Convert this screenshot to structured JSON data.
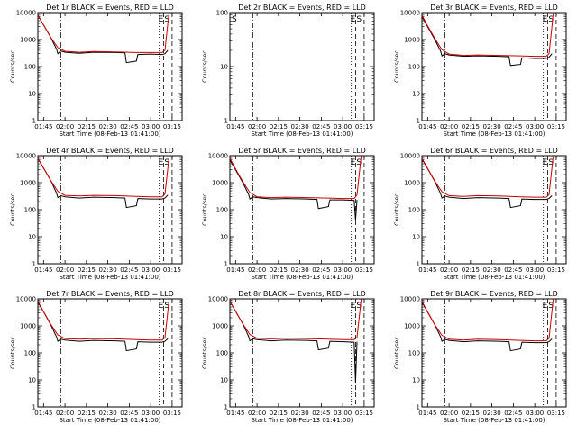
{
  "chart_data": [
    {
      "type": "line",
      "title": "Det 1r BLACK = Events, RED = LLD",
      "xlabel": "Start Time (08-Feb-13 01:41:00)",
      "ylabel": "Counts/sec",
      "yscale": "log",
      "ylim": [
        1,
        10000
      ],
      "xlim": [
        "01:41",
        "03:22"
      ],
      "xticks": [
        "01:45",
        "02:00",
        "02:15",
        "02:30",
        "02:45",
        "03:00",
        "03:15"
      ],
      "yticks": [
        "1",
        "10",
        "100",
        "1000",
        "10000"
      ],
      "annotations": [
        "E",
        "S"
      ],
      "series": [
        {
          "name": "Events",
          "color": "#000000",
          "x": [
            "01:41",
            "01:45",
            "01:50",
            "01:54",
            "01:55",
            "01:57",
            "02:00",
            "02:10",
            "02:20",
            "02:35",
            "02:42",
            "02:43",
            "02:50",
            "02:51",
            "03:00",
            "03:08",
            "03:10",
            "03:12"
          ],
          "y": [
            8000,
            3500,
            1200,
            450,
            300,
            380,
            340,
            310,
            340,
            330,
            320,
            140,
            160,
            280,
            290,
            280,
            300,
            400
          ]
        },
        {
          "name": "LLD",
          "color": "#cc0000",
          "x": [
            "01:41",
            "01:45",
            "01:50",
            "01:55",
            "02:00",
            "02:10",
            "02:20",
            "02:35",
            "02:50",
            "03:00",
            "03:08",
            "03:10",
            "03:12",
            "03:13"
          ],
          "y": [
            8000,
            3500,
            1200,
            500,
            370,
            340,
            360,
            350,
            330,
            330,
            330,
            400,
            4000,
            10000
          ]
        }
      ]
    },
    {
      "type": "line",
      "title": "Det 2r BLACK = Events, RED = LLD",
      "xlabel": "Start Time (08-Feb-13 01:41:00)",
      "ylabel": "Counts/sec",
      "yscale": "log",
      "ylim": [
        1,
        100
      ],
      "xlim": [
        "01:41",
        "03:22"
      ],
      "xticks": [
        "01:45",
        "02:00",
        "02:15",
        "02:30",
        "02:45",
        "03:00",
        "03:15"
      ],
      "yticks": [
        "1",
        "10",
        "100"
      ],
      "annotations": [
        "S",
        "E",
        "S"
      ],
      "series": []
    },
    {
      "type": "line",
      "title": "Det 3r BLACK = Events, RED = LLD",
      "xlabel": "Start Time (08-Feb-13 01:41:00)",
      "ylabel": "Counts/sec",
      "yscale": "log",
      "ylim": [
        1,
        10000
      ],
      "xlim": [
        "01:41",
        "03:22"
      ],
      "xticks": [
        "01:45",
        "02:00",
        "02:15",
        "02:30",
        "02:45",
        "03:00",
        "03:15"
      ],
      "yticks": [
        "1",
        "10",
        "100",
        "1000",
        "10000"
      ],
      "annotations": [
        "E",
        "S"
      ],
      "series": [
        {
          "name": "Events",
          "color": "#000000",
          "x": [
            "01:41",
            "01:45",
            "01:50",
            "01:54",
            "01:55",
            "01:57",
            "02:00",
            "02:10",
            "02:20",
            "02:35",
            "02:42",
            "02:43",
            "02:50",
            "02:51",
            "03:00",
            "03:08",
            "03:10",
            "03:12"
          ],
          "y": [
            7000,
            3000,
            1000,
            380,
            250,
            300,
            270,
            240,
            250,
            240,
            230,
            110,
            120,
            210,
            200,
            200,
            220,
            300
          ]
        },
        {
          "name": "LLD",
          "color": "#cc0000",
          "x": [
            "01:41",
            "01:45",
            "01:50",
            "01:55",
            "02:00",
            "02:10",
            "02:20",
            "02:35",
            "02:50",
            "03:00",
            "03:08",
            "03:10",
            "03:12",
            "03:13"
          ],
          "y": [
            8000,
            3200,
            1100,
            420,
            290,
            260,
            270,
            260,
            250,
            240,
            240,
            300,
            3000,
            10000
          ]
        }
      ]
    },
    {
      "type": "line",
      "title": "Det 4r BLACK = Events, RED = LLD",
      "xlabel": "Start Time (08-Feb-13 01:41:00)",
      "ylabel": "Counts/sec",
      "yscale": "log",
      "ylim": [
        1,
        10000
      ],
      "xlim": [
        "01:41",
        "03:22"
      ],
      "xticks": [
        "01:45",
        "02:00",
        "02:15",
        "02:30",
        "02:45",
        "03:00",
        "03:15"
      ],
      "yticks": [
        "1",
        "10",
        "100",
        "1000",
        "10000"
      ],
      "annotations": [
        "E",
        "S"
      ],
      "series": [
        {
          "name": "Events",
          "color": "#000000",
          "x": [
            "01:41",
            "01:45",
            "01:50",
            "01:54",
            "01:55",
            "01:57",
            "02:00",
            "02:10",
            "02:20",
            "02:35",
            "02:42",
            "02:43",
            "02:50",
            "02:51",
            "03:00",
            "03:08",
            "03:10",
            "03:12"
          ],
          "y": [
            8000,
            3500,
            1200,
            420,
            280,
            330,
            300,
            270,
            290,
            280,
            270,
            120,
            140,
            260,
            250,
            250,
            270,
            350
          ]
        },
        {
          "name": "LLD",
          "color": "#cc0000",
          "x": [
            "01:41",
            "01:45",
            "01:50",
            "01:55",
            "02:00",
            "02:10",
            "02:20",
            "02:35",
            "02:50",
            "03:00",
            "03:08",
            "03:10",
            "03:12",
            "03:13"
          ],
          "y": [
            8000,
            3500,
            1200,
            480,
            340,
            320,
            340,
            330,
            310,
            300,
            300,
            380,
            3500,
            10000
          ]
        }
      ]
    },
    {
      "type": "line",
      "title": "Det 5r BLACK = Events, RED = LLD",
      "xlabel": "Start Time (08-Feb-13 01:41:00)",
      "ylabel": "Counts/sec",
      "yscale": "log",
      "ylim": [
        1,
        10000
      ],
      "xlim": [
        "01:41",
        "03:22"
      ],
      "xticks": [
        "01:45",
        "02:00",
        "02:15",
        "02:30",
        "02:45",
        "03:00",
        "03:15"
      ],
      "yticks": [
        "1",
        "10",
        "100",
        "1000",
        "10000"
      ],
      "annotations": [
        "E",
        "S"
      ],
      "series": [
        {
          "name": "Events",
          "color": "#000000",
          "x": [
            "01:41",
            "01:45",
            "01:50",
            "01:54",
            "01:55",
            "01:57",
            "02:00",
            "02:10",
            "02:20",
            "02:35",
            "02:42",
            "02:43",
            "02:50",
            "02:51",
            "03:00",
            "03:08",
            "03:09",
            "03:10"
          ],
          "y": [
            7000,
            3000,
            1000,
            380,
            250,
            300,
            280,
            250,
            260,
            250,
            240,
            110,
            130,
            230,
            230,
            220,
            40,
            230
          ]
        },
        {
          "name": "LLD",
          "color": "#cc0000",
          "x": [
            "01:41",
            "01:45",
            "01:50",
            "01:55",
            "02:00",
            "02:10",
            "02:20",
            "02:35",
            "02:50",
            "03:00",
            "03:08",
            "03:10",
            "03:12",
            "03:13"
          ],
          "y": [
            8000,
            3200,
            1100,
            430,
            300,
            280,
            290,
            280,
            270,
            260,
            260,
            350,
            3500,
            10000
          ]
        }
      ]
    },
    {
      "type": "line",
      "title": "Det 6r BLACK = Events, RED = LLD",
      "xlabel": "Start Time (08-Feb-13 01:41:00)",
      "ylabel": "Counts/sec",
      "yscale": "log",
      "ylim": [
        1,
        10000
      ],
      "xlim": [
        "01:41",
        "03:22"
      ],
      "xticks": [
        "01:45",
        "02:00",
        "02:15",
        "02:30",
        "02:45",
        "03:00",
        "03:15"
      ],
      "yticks": [
        "1",
        "10",
        "100",
        "1000",
        "10000"
      ],
      "annotations": [
        "E",
        "S"
      ],
      "series": [
        {
          "name": "Events",
          "color": "#000000",
          "x": [
            "01:41",
            "01:45",
            "01:50",
            "01:54",
            "01:55",
            "01:57",
            "02:00",
            "02:10",
            "02:20",
            "02:35",
            "02:42",
            "02:43",
            "02:50",
            "02:51",
            "03:00",
            "03:08",
            "03:10",
            "03:12"
          ],
          "y": [
            7500,
            3300,
            1100,
            400,
            270,
            320,
            290,
            260,
            280,
            270,
            260,
            120,
            140,
            250,
            240,
            240,
            260,
            330
          ]
        },
        {
          "name": "LLD",
          "color": "#cc0000",
          "x": [
            "01:41",
            "01:45",
            "01:50",
            "01:55",
            "02:00",
            "02:10",
            "02:20",
            "02:35",
            "02:50",
            "03:00",
            "03:08",
            "03:10",
            "03:12",
            "03:13"
          ],
          "y": [
            8000,
            3400,
            1150,
            460,
            330,
            310,
            330,
            320,
            300,
            290,
            290,
            360,
            3500,
            10000
          ]
        }
      ]
    },
    {
      "type": "line",
      "title": "Det 7r BLACK = Events, RED = LLD",
      "xlabel": "Start Time (08-Feb-13 01:41:00)",
      "ylabel": "Counts/sec",
      "yscale": "log",
      "ylim": [
        1,
        10000
      ],
      "xlim": [
        "01:41",
        "03:22"
      ],
      "xticks": [
        "01:45",
        "02:00",
        "02:15",
        "02:30",
        "02:45",
        "03:00",
        "03:15"
      ],
      "yticks": [
        "1",
        "10",
        "100",
        "1000",
        "10000"
      ],
      "annotations": [
        "E",
        "S"
      ],
      "series": [
        {
          "name": "Events",
          "color": "#000000",
          "x": [
            "01:41",
            "01:45",
            "01:50",
            "01:54",
            "01:55",
            "01:57",
            "02:00",
            "02:10",
            "02:20",
            "02:35",
            "02:42",
            "02:43",
            "02:50",
            "02:51",
            "03:00",
            "03:08",
            "03:10",
            "03:12"
          ],
          "y": [
            7500,
            3300,
            1100,
            400,
            270,
            320,
            300,
            270,
            290,
            280,
            270,
            120,
            140,
            260,
            250,
            250,
            270,
            340
          ]
        },
        {
          "name": "LLD",
          "color": "#cc0000",
          "x": [
            "01:41",
            "01:45",
            "01:50",
            "01:55",
            "02:00",
            "02:10",
            "02:20",
            "02:35",
            "02:50",
            "03:00",
            "03:08",
            "03:10",
            "03:12",
            "03:13"
          ],
          "y": [
            8000,
            3400,
            1150,
            460,
            340,
            320,
            340,
            330,
            310,
            300,
            300,
            370,
            3500,
            10000
          ]
        }
      ]
    },
    {
      "type": "line",
      "title": "Det 8r BLACK = Events, RED = LLD",
      "xlabel": "Start Time (08-Feb-13 01:41:00)",
      "ylabel": "Counts/sec",
      "yscale": "log",
      "ylim": [
        1,
        10000
      ],
      "xlim": [
        "01:41",
        "03:22"
      ],
      "xticks": [
        "01:45",
        "02:00",
        "02:15",
        "02:30",
        "02:45",
        "03:00",
        "03:15"
      ],
      "yticks": [
        "1",
        "10",
        "100",
        "1000",
        "10000"
      ],
      "annotations": [
        "E",
        "S"
      ],
      "series": [
        {
          "name": "Events",
          "color": "#000000",
          "x": [
            "01:41",
            "01:45",
            "01:50",
            "01:54",
            "01:55",
            "01:57",
            "02:00",
            "02:10",
            "02:20",
            "02:35",
            "02:42",
            "02:43",
            "02:50",
            "02:51",
            "03:00",
            "03:08",
            "03:09",
            "03:10"
          ],
          "y": [
            8000,
            3500,
            1200,
            420,
            280,
            330,
            310,
            280,
            300,
            290,
            280,
            130,
            150,
            270,
            260,
            250,
            8,
            260
          ]
        },
        {
          "name": "LLD",
          "color": "#cc0000",
          "x": [
            "01:41",
            "01:45",
            "01:50",
            "01:55",
            "02:00",
            "02:10",
            "02:20",
            "02:35",
            "02:50",
            "03:00",
            "03:08",
            "03:10",
            "03:12",
            "03:13"
          ],
          "y": [
            8000,
            3500,
            1200,
            480,
            350,
            330,
            350,
            340,
            320,
            310,
            310,
            380,
            3500,
            10000
          ]
        }
      ]
    },
    {
      "type": "line",
      "title": "Det 9r BLACK = Events, RED = LLD",
      "xlabel": "Start Time (08-Feb-13 01:41:00)",
      "ylabel": "Counts/sec",
      "yscale": "log",
      "ylim": [
        1,
        10000
      ],
      "xlim": [
        "01:41",
        "03:22"
      ],
      "xticks": [
        "01:45",
        "02:00",
        "02:15",
        "02:30",
        "02:45",
        "03:00",
        "03:15"
      ],
      "yticks": [
        "1",
        "10",
        "100",
        "1000",
        "10000"
      ],
      "annotations": [
        "E",
        "S"
      ],
      "series": [
        {
          "name": "Events",
          "color": "#000000",
          "x": [
            "01:41",
            "01:45",
            "01:50",
            "01:54",
            "01:55",
            "01:57",
            "02:00",
            "02:10",
            "02:20",
            "02:35",
            "02:42",
            "02:43",
            "02:50",
            "02:51",
            "03:00",
            "03:08",
            "03:10",
            "03:12"
          ],
          "y": [
            7500,
            3200,
            1100,
            400,
            270,
            320,
            290,
            260,
            280,
            270,
            260,
            120,
            140,
            250,
            240,
            240,
            260,
            330
          ]
        },
        {
          "name": "LLD",
          "color": "#cc0000",
          "x": [
            "01:41",
            "01:45",
            "01:50",
            "01:55",
            "02:00",
            "02:10",
            "02:20",
            "02:35",
            "02:50",
            "03:00",
            "03:08",
            "03:10",
            "03:12",
            "03:13"
          ],
          "y": [
            8000,
            3300,
            1100,
            450,
            320,
            300,
            320,
            310,
            290,
            280,
            280,
            350,
            3500,
            10000
          ]
        }
      ]
    }
  ]
}
